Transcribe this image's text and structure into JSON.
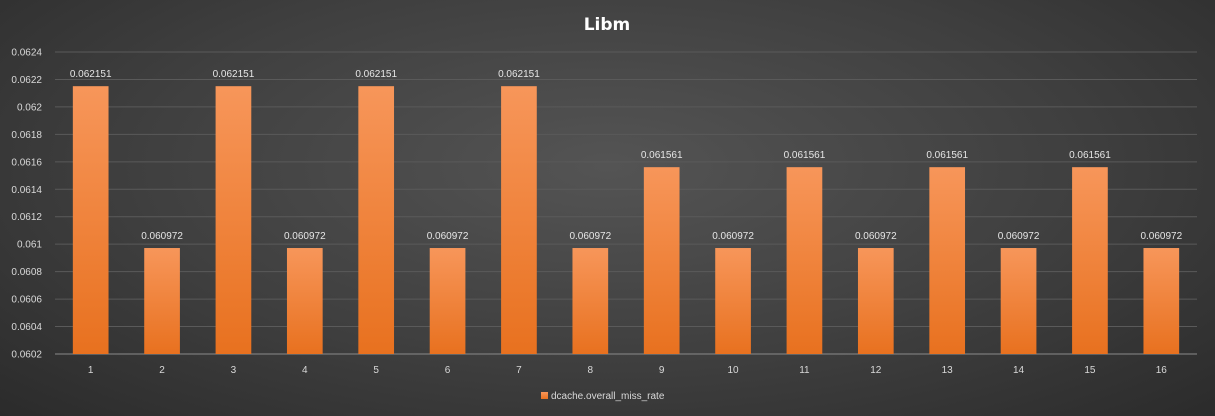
{
  "chart_data": {
    "type": "bar",
    "title": "Libm",
    "xlabel": "",
    "ylabel": "",
    "categories": [
      "1",
      "2",
      "3",
      "4",
      "5",
      "6",
      "7",
      "8",
      "9",
      "10",
      "11",
      "12",
      "13",
      "14",
      "15",
      "16"
    ],
    "series": [
      {
        "name": "dcache.overall_miss_rate",
        "values": [
          0.062151,
          0.060972,
          0.062151,
          0.060972,
          0.062151,
          0.060972,
          0.062151,
          0.060972,
          0.061561,
          0.060972,
          0.061561,
          0.060972,
          0.061561,
          0.060972,
          0.061561,
          0.060972
        ],
        "data_labels": [
          "0.062151",
          "0.060972",
          "0.062151",
          "0.060972",
          "0.062151",
          "0.060972",
          "0.062151",
          "0.060972",
          "0.061561",
          "0.060972",
          "0.061561",
          "0.060972",
          "0.061561",
          "0.060972",
          "0.061561",
          "0.060972"
        ]
      }
    ],
    "ylim": [
      0.0602,
      0.0624
    ],
    "yticks": [
      "0.0602",
      "0.0604",
      "0.0606",
      "0.0608",
      "0.061",
      "0.0612",
      "0.0614",
      "0.0616",
      "0.0618",
      "0.062",
      "0.0622",
      "0.0624"
    ],
    "grid": true,
    "legend": "bottom",
    "colors": {
      "bar_top": "#f7965a",
      "bar_bottom": "#e8711f",
      "grid": "#5a5a5a"
    }
  }
}
